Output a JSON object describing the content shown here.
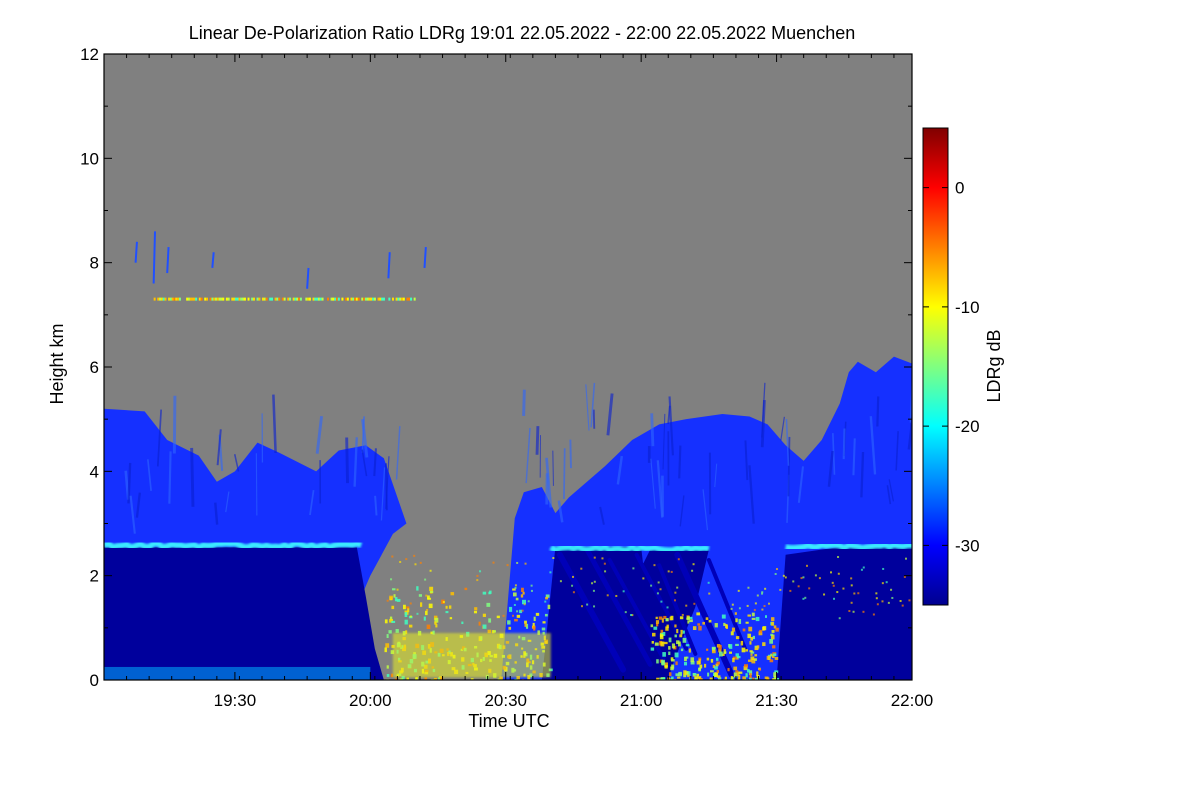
{
  "chart_data": {
    "type": "heatmap",
    "title": "Linear De-Polarization Ratio LDRg   19:01 22.05.2022 - 22:00 22.05.2022 Muenchen",
    "xlabel": "Time UTC",
    "ylabel": "Height km",
    "xlim": [
      "19:01",
      "22:00"
    ],
    "ylim": [
      0,
      12
    ],
    "x_ticks": [
      "19:30",
      "20:00",
      "20:30",
      "21:00",
      "21:30",
      "22:00"
    ],
    "y_ticks": [
      "0",
      "2",
      "4",
      "6",
      "8",
      "10",
      "12"
    ],
    "colorbar": {
      "label": "LDRg dB",
      "ticks": [
        "0",
        "-10",
        "-20",
        "-30"
      ],
      "range": [
        -35,
        5
      ],
      "colormap": [
        "#00008f",
        "#0000ff",
        "#0080ff",
        "#00ffff",
        "#80ff80",
        "#ffff00",
        "#ff8000",
        "#ff0000",
        "#800000"
      ]
    },
    "background_color": "#808080",
    "features": [
      {
        "description": "dense low-level aerosol/cloud layer",
        "height_km": [
          0,
          2.5
        ],
        "ldr_db": -33
      },
      {
        "description": "bright layer near boundary",
        "height_km": [
          2.5,
          2.7
        ],
        "ldr_db": -20
      },
      {
        "description": "elevated cloud mass",
        "height_km": [
          2.7,
          6.3
        ],
        "ldr_db": -28
      },
      {
        "description": "high thin ice layer",
        "height_km": [
          7.2,
          7.4
        ],
        "ldr_db": -8
      }
    ]
  }
}
